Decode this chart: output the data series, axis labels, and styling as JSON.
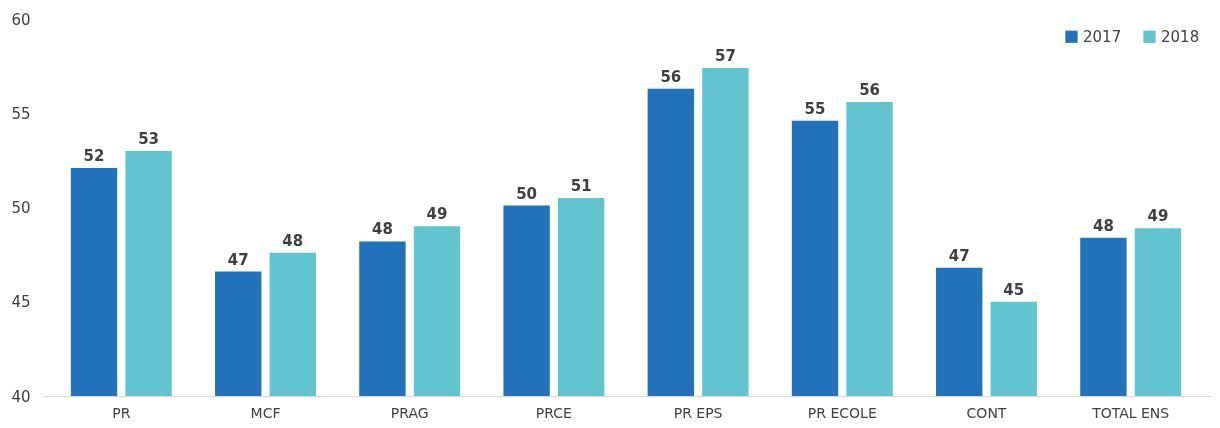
{
  "chart_data": {
    "type": "bar",
    "categories": [
      "PR",
      "MCF",
      "PRAG",
      "PRCE",
      "PR EPS",
      "PR ECOLE",
      "CONT",
      "TOTAL ENS"
    ],
    "series": [
      {
        "name": "2017",
        "color": "#2372bc",
        "values": [
          52.1,
          46.6,
          48.2,
          50.1,
          56.3,
          54.6,
          46.8,
          48.4
        ],
        "value_labels": [
          "52",
          "47",
          "48",
          "50",
          "56",
          "55",
          "47",
          "48"
        ]
      },
      {
        "name": "2018",
        "color": "#62c4cf",
        "values": [
          53.0,
          47.6,
          49.0,
          50.5,
          57.4,
          55.6,
          45.0,
          48.9
        ],
        "value_labels": [
          "53",
          "48",
          "49",
          "51",
          "57",
          "56",
          "45",
          "49"
        ]
      }
    ],
    "ylim": [
      40,
      60
    ],
    "yticks": [
      40,
      45,
      50,
      55,
      60
    ],
    "grid": false,
    "legend": "top right"
  }
}
